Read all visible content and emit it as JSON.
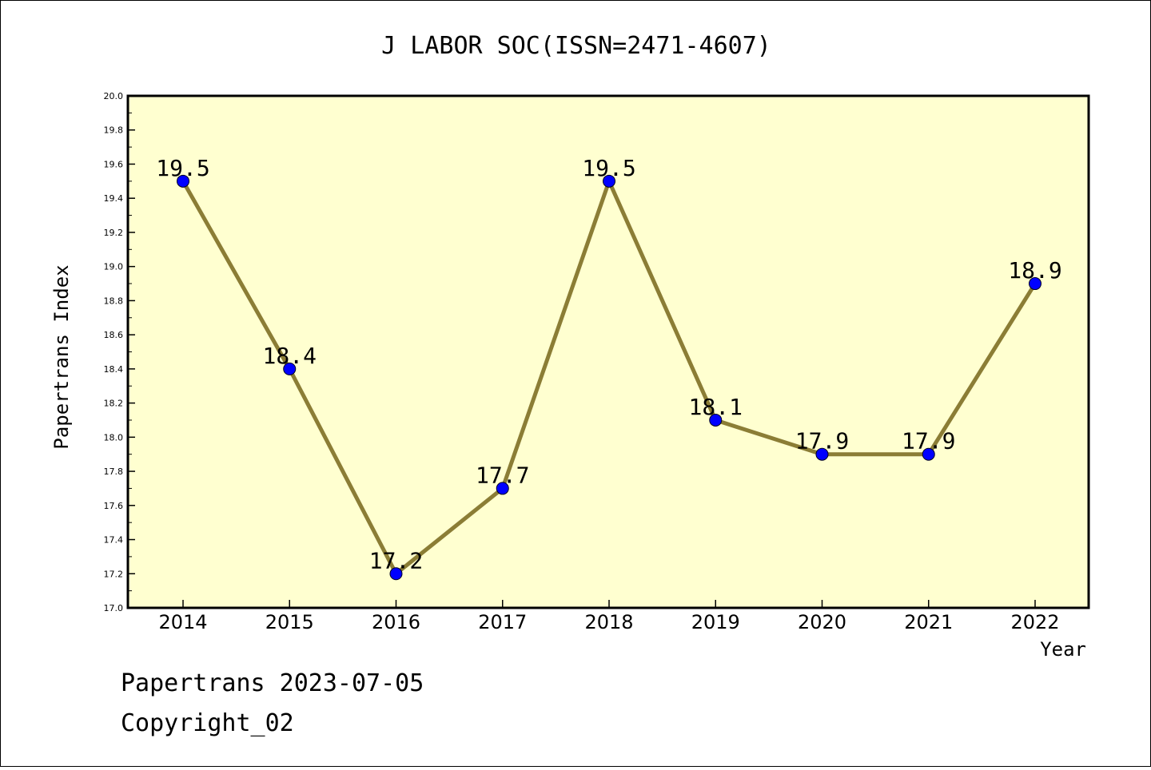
{
  "chart_data": {
    "type": "line",
    "title": "J LABOR SOC(ISSN=2471-4607)",
    "xlabel": "Year",
    "ylabel": "Papertrans Index",
    "categories": [
      "2014",
      "2015",
      "2016",
      "2017",
      "2018",
      "2019",
      "2020",
      "2021",
      "2022"
    ],
    "values": [
      19.5,
      18.4,
      17.2,
      17.7,
      19.5,
      18.1,
      17.9,
      17.9,
      18.9
    ],
    "data_labels": [
      "19.5",
      "18.4",
      "17.2",
      "17.7",
      "19.5",
      "18.1",
      "17.9",
      "17.9",
      "18.9"
    ],
    "ylim": [
      17.0,
      20.0
    ],
    "yticks": [
      "17.0",
      "17.2",
      "17.4",
      "17.6",
      "17.8",
      "18.0",
      "18.2",
      "18.4",
      "18.6",
      "18.8",
      "19.0",
      "19.2",
      "19.4",
      "19.6",
      "19.8",
      "20.0"
    ],
    "grid": false,
    "legend": "none",
    "colors": {
      "line": "#8B7D35",
      "marker": "#0000FF",
      "plot_background": "#FFFFD0"
    }
  },
  "footer": {
    "line1": "Papertrans 2023-07-05",
    "line2": "Copyright_02"
  }
}
